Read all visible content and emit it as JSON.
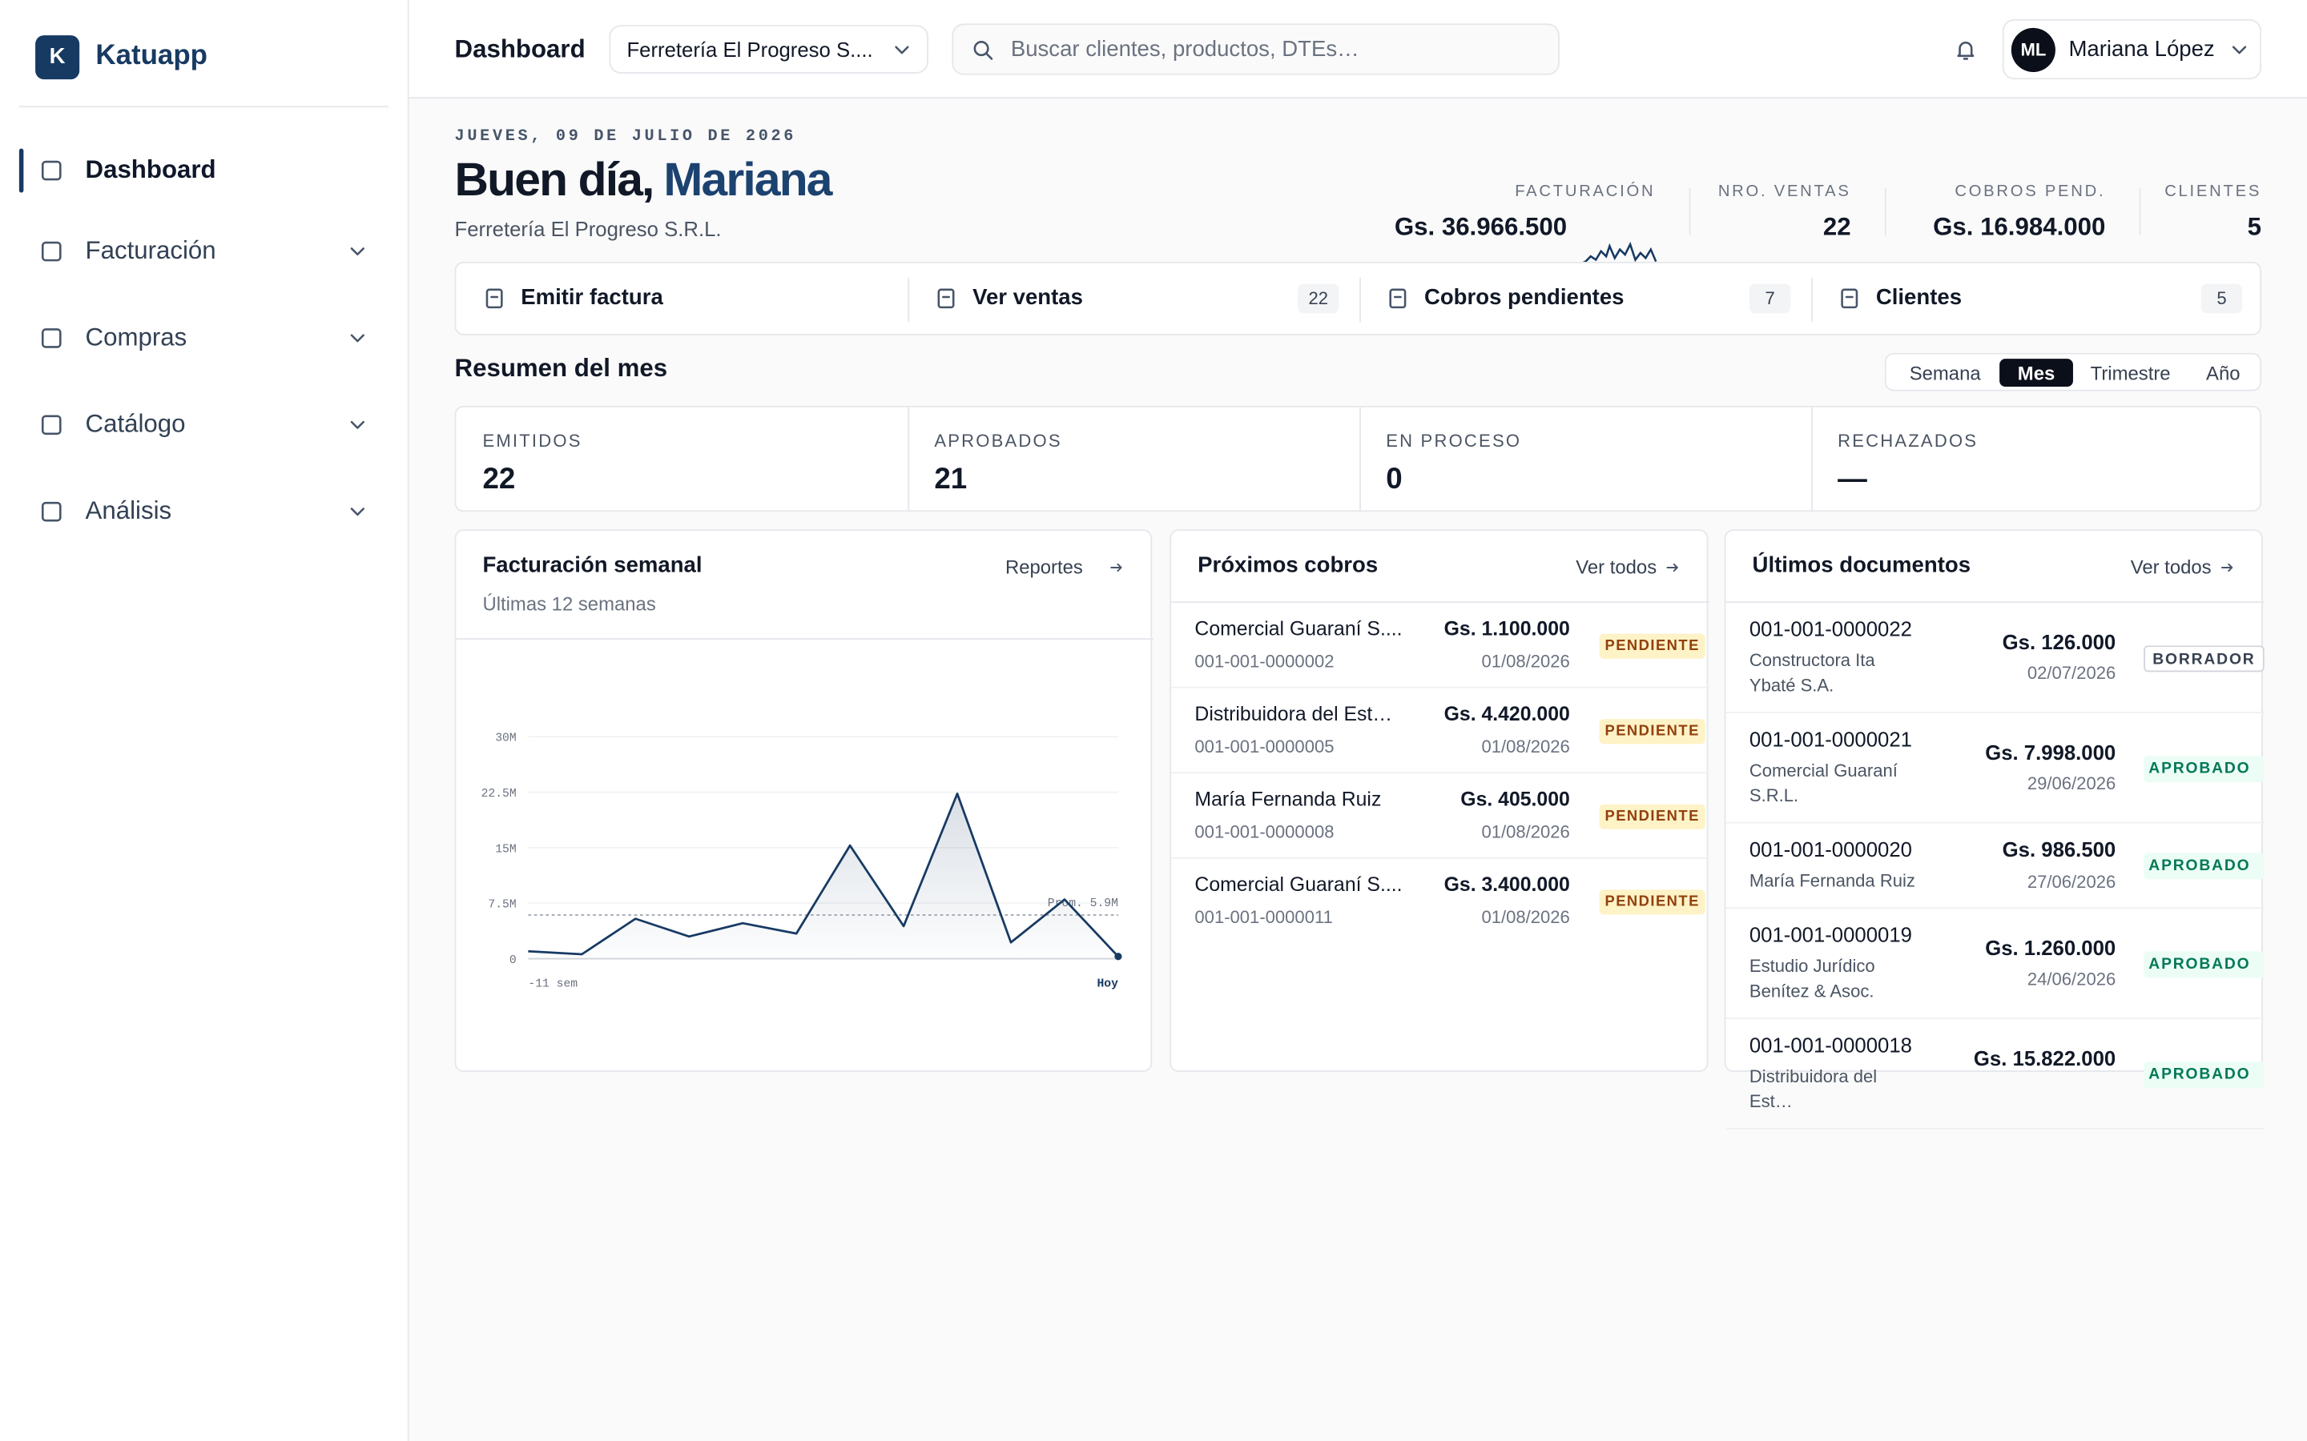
{
  "sidebar": {
    "logo": "K",
    "brand": "Katuapp",
    "nav": [
      "Dashboard",
      "Facturación",
      "Compras",
      "Catálogo",
      "Análisis"
    ]
  },
  "header": {
    "title": "Dashboard",
    "company": "Ferretería El Progreso S....",
    "search": "Buscar clientes, productos, DTEs…",
    "initials": "ML",
    "user": "Mariana López"
  },
  "greeting": {
    "date": "JUEVES, 09 DE JULIO DE 2026",
    "hello": "Buen día,",
    "name": "Mariana",
    "company": "Ferretería El Progreso S.R.L."
  },
  "kpis": [
    {
      "label": "FACTURACIÓN",
      "value": "Gs. 36.966.500"
    },
    {
      "label": "NRO. VENTAS",
      "value": "22"
    },
    {
      "label": "COBROS PEND.",
      "value": "Gs. 16.984.000"
    },
    {
      "label": "CLIENTES",
      "value": "5"
    }
  ],
  "actions": [
    {
      "label": "Emitir factura"
    },
    {
      "label": "Ver ventas",
      "badge": "22"
    },
    {
      "label": "Cobros pendientes",
      "badge": "7"
    },
    {
      "label": "Clientes",
      "badge": "5"
    }
  ],
  "summary": {
    "title": "Resumen del mes",
    "periods": [
      "Semana",
      "Mes",
      "Trimestre",
      "Año"
    ],
    "stats": [
      {
        "label": "EMITIDOS",
        "value": "22"
      },
      {
        "label": "APROBADOS",
        "value": "21"
      },
      {
        "label": "EN PROCESO",
        "value": "0"
      },
      {
        "label": "RECHAZADOS",
        "value": "—"
      }
    ]
  },
  "chart_card": {
    "title": "Facturación semanal",
    "link": "Reportes",
    "subtitle": "Últimas 12 semanas"
  },
  "chart_data": {
    "type": "line",
    "categories": [
      "-11 sem",
      null,
      null,
      null,
      null,
      null,
      null,
      null,
      null,
      null,
      null,
      "Hoy"
    ],
    "values": [
      1.0,
      0.6,
      5.4,
      3.0,
      4.8,
      3.4,
      15.3,
      4.4,
      22.3,
      2.2,
      8.0,
      0.3
    ],
    "color": "#173a63",
    "ylim": [
      0,
      30
    ],
    "yticks": [
      0,
      {
        "value": 7.5,
        "label": "7.5M"
      },
      {
        "value": 15,
        "label": "15M"
      },
      {
        "value": 22.5,
        "label": "22.5M"
      },
      {
        "value": 30,
        "label": "30M"
      }
    ],
    "grid": true,
    "average": {
      "value": 5.9,
      "label": "Prom. 5.9M"
    }
  },
  "cobros": {
    "title": "Próximos cobros",
    "link": "Ver todos",
    "items": [
      {
        "name": "Comercial Guaraní S....",
        "doc": "001-001-0000002",
        "amount": "Gs. 1.100.000",
        "date": "01/08/2026",
        "status": "PENDIENTE"
      },
      {
        "name": "Distribuidora del Est…",
        "doc": "001-001-0000005",
        "amount": "Gs. 4.420.000",
        "date": "01/08/2026",
        "status": "PENDIENTE"
      },
      {
        "name": "María Fernanda Ruiz",
        "doc": "001-001-0000008",
        "amount": "Gs. 405.000",
        "date": "01/08/2026",
        "status": "PENDIENTE"
      },
      {
        "name": "Comercial Guaraní S....",
        "doc": "001-001-0000011",
        "amount": "Gs. 3.400.000",
        "date": "01/08/2026",
        "status": "PENDIENTE"
      }
    ]
  },
  "docs": {
    "title": "Últimos documentos",
    "link": "Ver todos",
    "items": [
      {
        "number": "001-001-0000022",
        "client": "Constructora Ita Ybaté S.A.",
        "amount": "Gs. 126.000",
        "date": "02/07/2026",
        "status": "BORRADOR"
      },
      {
        "number": "001-001-0000021",
        "client": "Comercial Guaraní S.R.L.",
        "amount": "Gs. 7.998.000",
        "date": "29/06/2026",
        "status": "APROBADO"
      },
      {
        "number": "001-001-0000020",
        "client": "María Fernanda Ruiz",
        "amount": "Gs. 986.500",
        "date": "27/06/2026",
        "status": "APROBADO"
      },
      {
        "number": "001-001-0000019",
        "client": "Estudio Jurídico Benítez & Asoc.",
        "amount": "Gs. 1.260.000",
        "date": "24/06/2026",
        "status": "APROBADO"
      },
      {
        "number": "001-001-0000018",
        "client": "Distribuidora del Est…",
        "amount": "Gs. 15.822.000",
        "date": "",
        "status": "APROBADO"
      }
    ]
  }
}
